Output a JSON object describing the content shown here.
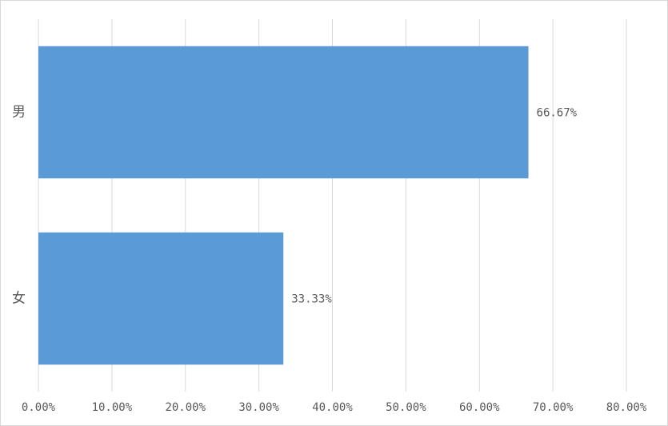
{
  "chart_data": {
    "type": "hbar",
    "categories": [
      "男",
      "女"
    ],
    "values": [
      66.67,
      33.33
    ],
    "value_labels": [
      "66.67%",
      "33.33%"
    ],
    "color": "#5b9bd5",
    "xlim": [
      0,
      80
    ],
    "xticks": [
      {
        "value": 0,
        "label": "0.00%"
      },
      {
        "value": 10,
        "label": "10.00%"
      },
      {
        "value": 20,
        "label": "20.00%"
      },
      {
        "value": 30,
        "label": "30.00%"
      },
      {
        "value": 40,
        "label": "40.00%"
      },
      {
        "value": 50,
        "label": "50.00%"
      },
      {
        "value": 60,
        "label": "60.00%"
      },
      {
        "value": 70,
        "label": "70.00%"
      },
      {
        "value": 80,
        "label": "80.00%"
      }
    ],
    "grid": true
  }
}
